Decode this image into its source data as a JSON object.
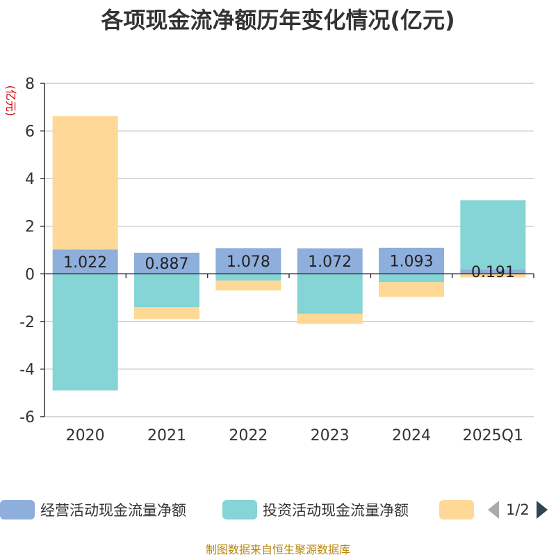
{
  "chart_data": {
    "type": "bar",
    "stacked": true,
    "title": "各项现金流净额历年变化情况(亿元)",
    "ylabel": "(亿元)",
    "categories": [
      "2020",
      "2021",
      "2022",
      "2023",
      "2024",
      "2025Q1"
    ],
    "ylim": [
      -6,
      8
    ],
    "yticks": [
      -6,
      -4,
      -2,
      0,
      2,
      4,
      6,
      8
    ],
    "grid": true,
    "series": [
      {
        "name": "经营活动现金流量净额",
        "color": "#8eaedc",
        "values": [
          1.022,
          0.887,
          1.078,
          1.072,
          1.093,
          0.191
        ]
      },
      {
        "name": "投资活动现金流量净额",
        "color": "#85d4d6",
        "values": [
          -4.9,
          -1.4,
          -0.28,
          -1.68,
          -0.35,
          2.9
        ]
      },
      {
        "name": "",
        "color": "#fed896",
        "values": [
          5.6,
          -0.5,
          -0.42,
          -0.42,
          -0.62,
          -0.15
        ]
      }
    ],
    "data_labels": [
      "1.022",
      "0.887",
      "1.078",
      "1.072",
      "1.093",
      "0.191"
    ],
    "legend": {
      "position": "bottom",
      "page": "1/2"
    }
  },
  "source": "制图数据来自恒生聚源数据库"
}
